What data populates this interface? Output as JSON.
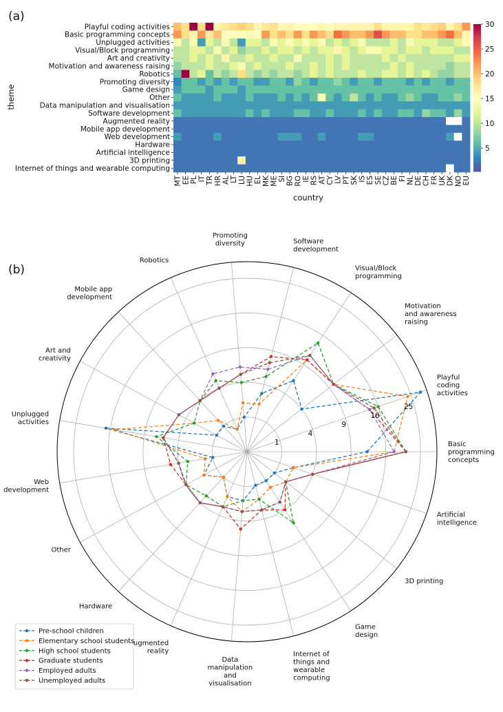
{
  "figure": {
    "panel_a_label": "(a)",
    "panel_b_label": "(b)"
  },
  "chart_data": [
    {
      "type": "heatmap",
      "xlabel": "country",
      "ylabel": "theme",
      "colorbar_ticks": [
        5,
        10,
        15,
        20,
        25,
        30
      ],
      "vmin": 0,
      "vmax": 30,
      "colormap": "Spectral_r",
      "themes": [
        "Playful coding activities",
        "Basic programming concepts",
        "Unplugged activities",
        "Visual/Block programming",
        "Art and creativity",
        "Motivation and awareness raising",
        "Robotics",
        "Promoting diversity",
        "Game design",
        "Other",
        "Data manipulation and visualisation",
        "Software development",
        "Augmented reality",
        "Mobile app development",
        "Web development",
        "Hardware",
        "Artificial intelligence",
        "3D printing",
        "Internet of things and wearable computing"
      ],
      "countries": [
        "MT",
        "EE",
        "PL",
        "IT",
        "TR",
        "HR",
        "AL",
        "LT",
        "LU",
        "HU",
        "EL",
        "MK",
        "ME",
        "SI",
        "BG",
        "RO",
        "IE",
        "RS",
        "AT",
        "CY",
        "LV",
        "PT",
        "SK",
        "IS",
        "ES",
        "SE",
        "CZ",
        "BE",
        "FI",
        "NL",
        "DE",
        "CH",
        "FR",
        "UK",
        "DK",
        "NO",
        "EU"
      ],
      "values": [
        [
          20,
          18,
          30,
          18,
          30,
          16,
          17,
          18,
          19,
          18,
          16,
          17,
          18,
          14,
          16,
          15,
          15,
          15,
          16,
          15,
          16,
          16,
          16,
          16,
          16,
          18,
          16,
          16,
          16,
          16,
          18,
          17,
          18,
          19,
          16,
          18,
          22
        ],
        [
          22,
          18,
          16,
          22,
          17,
          20,
          15,
          15,
          15,
          14,
          15,
          22,
          18,
          20,
          18,
          22,
          18,
          22,
          20,
          18,
          24,
          22,
          20,
          20,
          22,
          26,
          22,
          20,
          20,
          18,
          18,
          20,
          20,
          22,
          24,
          20,
          16
        ],
        [
          14,
          10,
          14,
          4,
          12,
          10,
          14,
          10,
          4,
          12,
          12,
          10,
          14,
          12,
          14,
          12,
          14,
          12,
          14,
          10,
          12,
          10,
          12,
          14,
          10,
          10,
          10,
          12,
          10,
          14,
          12,
          12,
          12,
          10,
          10,
          12,
          14
        ],
        [
          10,
          10,
          12,
          12,
          10,
          14,
          10,
          12,
          8,
          10,
          10,
          12,
          10,
          12,
          12,
          10,
          12,
          10,
          12,
          12,
          16,
          12,
          10,
          12,
          14,
          14,
          12,
          12,
          10,
          12,
          12,
          10,
          12,
          12,
          12,
          10,
          10
        ],
        [
          10,
          10,
          12,
          10,
          12,
          10,
          16,
          10,
          10,
          12,
          10,
          10,
          12,
          10,
          10,
          14,
          10,
          10,
          10,
          12,
          10,
          12,
          10,
          10,
          10,
          10,
          12,
          10,
          12,
          10,
          10,
          10,
          10,
          10,
          10,
          12,
          12
        ],
        [
          8,
          10,
          10,
          10,
          12,
          10,
          10,
          12,
          14,
          10,
          12,
          10,
          10,
          10,
          12,
          10,
          10,
          12,
          10,
          12,
          10,
          12,
          10,
          10,
          10,
          10,
          10,
          12,
          10,
          12,
          10,
          10,
          10,
          10,
          8,
          10,
          10
        ],
        [
          6,
          30,
          10,
          12,
          6,
          10,
          8,
          10,
          18,
          10,
          8,
          10,
          8,
          10,
          10,
          8,
          10,
          12,
          10,
          12,
          10,
          10,
          10,
          12,
          10,
          10,
          12,
          12,
          10,
          12,
          10,
          12,
          10,
          8,
          8,
          10,
          10
        ],
        [
          3,
          6,
          6,
          4,
          6,
          4,
          6,
          4,
          6,
          6,
          4,
          4,
          6,
          6,
          4,
          8,
          6,
          4,
          6,
          6,
          8,
          6,
          4,
          6,
          6,
          4,
          6,
          6,
          6,
          4,
          6,
          4,
          6,
          6,
          4,
          6,
          6
        ],
        [
          4,
          6,
          6,
          6,
          4,
          6,
          6,
          6,
          4,
          6,
          6,
          6,
          6,
          6,
          6,
          6,
          6,
          6,
          6,
          6,
          6,
          6,
          6,
          6,
          6,
          6,
          6,
          6,
          6,
          6,
          6,
          6,
          6,
          6,
          6,
          6,
          6
        ],
        [
          6,
          4,
          4,
          4,
          4,
          6,
          4,
          4,
          4,
          6,
          4,
          4,
          4,
          6,
          4,
          6,
          4,
          6,
          14,
          6,
          4,
          6,
          10,
          6,
          4,
          6,
          4,
          4,
          6,
          8,
          6,
          4,
          4,
          6,
          6,
          8,
          6
        ],
        [
          4,
          4,
          4,
          4,
          4,
          4,
          4,
          4,
          4,
          4,
          4,
          4,
          4,
          4,
          4,
          4,
          4,
          4,
          4,
          4,
          4,
          4,
          4,
          4,
          4,
          4,
          4,
          4,
          4,
          4,
          4,
          4,
          4,
          4,
          4,
          4,
          4
        ],
        [
          6,
          4,
          4,
          4,
          4,
          4,
          4,
          4,
          4,
          6,
          4,
          6,
          4,
          4,
          4,
          6,
          6,
          4,
          4,
          6,
          4,
          4,
          4,
          6,
          4,
          6,
          4,
          4,
          6,
          6,
          4,
          8,
          6,
          6,
          4,
          8,
          4
        ],
        [
          2,
          2,
          2,
          2,
          2,
          2,
          2,
          2,
          2,
          2,
          2,
          2,
          2,
          2,
          2,
          2,
          2,
          2,
          2,
          2,
          2,
          2,
          2,
          2,
          2,
          2,
          2,
          2,
          2,
          2,
          2,
          2,
          2,
          2,
          null,
          null,
          2
        ],
        [
          2,
          2,
          2,
          2,
          2,
          2,
          2,
          2,
          2,
          2,
          2,
          2,
          2,
          2,
          2,
          2,
          2,
          2,
          2,
          2,
          2,
          2,
          2,
          2,
          2,
          2,
          2,
          2,
          2,
          2,
          2,
          2,
          2,
          2,
          2,
          2,
          2
        ],
        [
          4,
          2,
          2,
          2,
          2,
          4,
          2,
          2,
          2,
          2,
          2,
          2,
          2,
          4,
          4,
          4,
          2,
          2,
          4,
          2,
          2,
          2,
          2,
          4,
          4,
          2,
          2,
          2,
          2,
          2,
          2,
          2,
          2,
          2,
          4,
          null,
          2
        ],
        [
          2,
          2,
          2,
          2,
          2,
          2,
          2,
          2,
          2,
          2,
          2,
          2,
          2,
          2,
          2,
          2,
          2,
          2,
          2,
          2,
          2,
          2,
          2,
          2,
          2,
          2,
          2,
          2,
          2,
          2,
          2,
          2,
          2,
          2,
          2,
          2,
          2
        ],
        [
          2,
          2,
          2,
          2,
          2,
          2,
          2,
          2,
          2,
          2,
          2,
          2,
          2,
          2,
          2,
          2,
          2,
          2,
          2,
          2,
          2,
          2,
          2,
          2,
          2,
          2,
          2,
          2,
          2,
          2,
          2,
          2,
          2,
          2,
          2,
          2,
          2
        ],
        [
          2,
          2,
          2,
          2,
          2,
          2,
          2,
          2,
          16,
          2,
          2,
          2,
          2,
          2,
          2,
          2,
          2,
          2,
          2,
          2,
          2,
          2,
          2,
          2,
          2,
          2,
          2,
          2,
          2,
          2,
          2,
          2,
          2,
          2,
          2,
          2,
          2
        ],
        [
          2,
          2,
          2,
          2,
          2,
          2,
          2,
          2,
          2,
          2,
          2,
          2,
          2,
          2,
          2,
          2,
          2,
          2,
          2,
          2,
          2,
          2,
          2,
          2,
          2,
          2,
          2,
          2,
          2,
          2,
          2,
          2,
          2,
          2,
          null,
          2,
          2
        ]
      ]
    },
    {
      "type": "radar",
      "radial_scale": "sqrt",
      "radial_ticks": [
        1,
        4,
        9,
        16,
        25
      ],
      "rmax": 30,
      "axes": [
        "Basic\nprogramming\nconcepts",
        "Playful\ncoding\nactivities",
        "Motivation\nand awareness\nraising",
        "Visual/Block\nprogramming",
        "Software\ndevelopment",
        "Promoting\ndiversity",
        "Robotics",
        "Mobile app\ndevelopment",
        "Art and\ncreativity",
        "Unplugged\nactivities",
        "Web\ndevelopment",
        "Other",
        "Hardware",
        "Augmented\nreality",
        "Data\nmanipulation\nand\nvisualisation",
        "Internet of\nthings and\nwearable\ncomputing",
        "Game\ndesign",
        "3D printing",
        "Artificial\nintelligence"
      ],
      "legend_position": "lower-left",
      "series": [
        {
          "name": "Pre-school children",
          "color": "#1f77b4",
          "values": [
            12,
            28,
            4,
            6,
            3,
            1,
            0.5,
            1,
            1,
            17,
            1,
            2,
            1,
            2,
            2,
            1,
            1,
            1,
            2
          ]
        },
        {
          "name": "Elementary school students",
          "color": "#ff7f0e",
          "values": [
            18,
            24,
            10,
            10,
            2,
            2,
            0.5,
            1.5,
            3,
            15,
            1.5,
            2,
            1,
            2,
            3,
            2,
            1.5,
            2,
            2
          ]
        },
        {
          "name": "High school students",
          "color": "#2ca02c",
          "values": [
            21,
            16,
            10,
            14,
            5,
            4,
            5,
            4,
            3,
            7,
            3,
            4,
            3,
            3,
            2,
            2,
            6,
            2,
            4
          ]
        },
        {
          "name": "Graduate students",
          "color": "#d62728",
          "values": [
            21,
            14,
            10,
            10,
            8,
            5,
            4,
            4,
            5,
            6,
            5,
            4,
            4,
            3,
            5,
            3,
            4,
            2,
            4
          ]
        },
        {
          "name": "Employed adults",
          "color": "#9467bd",
          "values": [
            18,
            14,
            10,
            11,
            6,
            6,
            6,
            4,
            5,
            6,
            4,
            4,
            4,
            3,
            3,
            3,
            3,
            2,
            4
          ]
        },
        {
          "name": "Unemployed adults",
          "color": "#8c564b",
          "values": [
            21,
            15,
            10,
            11,
            7,
            5,
            4,
            4,
            5,
            6,
            4,
            4,
            4,
            3,
            3,
            3,
            3,
            2,
            4
          ]
        }
      ]
    }
  ]
}
